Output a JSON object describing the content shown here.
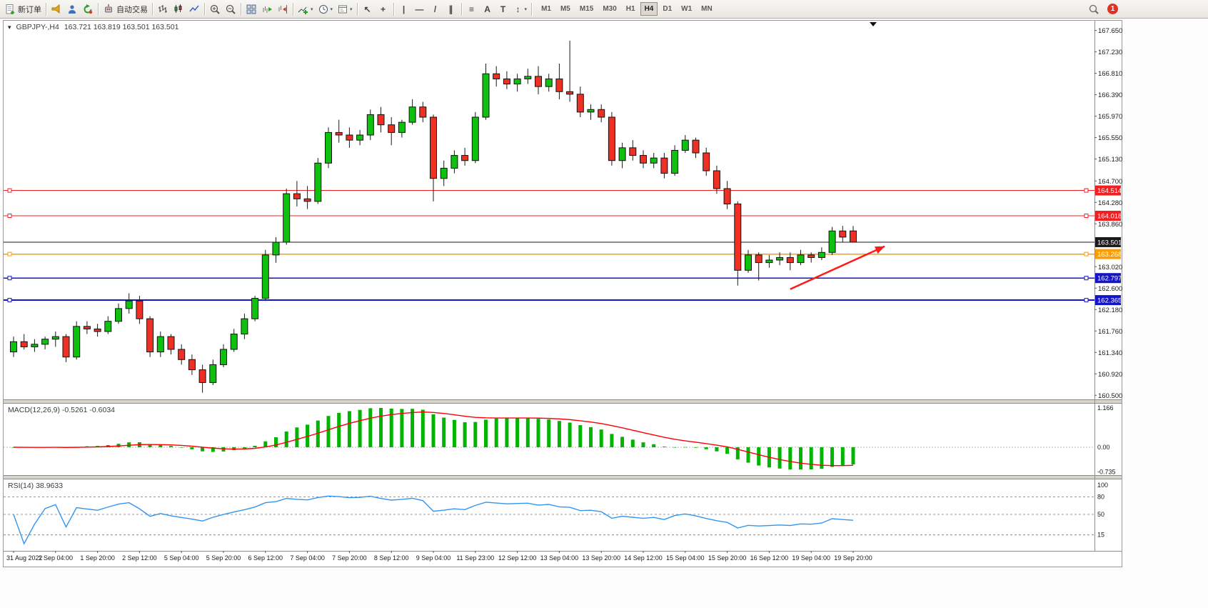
{
  "toolbar": {
    "new_order_label": "新订单",
    "auto_trading_label": "自动交易",
    "timeframes": [
      "M1",
      "M5",
      "M15",
      "M30",
      "H1",
      "H4",
      "D1",
      "W1",
      "MN"
    ],
    "active_timeframe": "H4",
    "notification_count": "1",
    "icon_glyphs": {
      "cursor": "↖",
      "crosshair": "+",
      "vline": "|",
      "hline": "—",
      "trendline": "/",
      "channel": "∥",
      "fibonacci": "≡",
      "text_tool": "A",
      "label_tool": "T",
      "arrows_tool": "↕",
      "caret": "▾"
    }
  },
  "chart_header": {
    "collapse_glyph": "▾",
    "symbol_timeframe": "GBPJPY-,H4",
    "ohlc_text": "163.721 163.819 163.501 163.501"
  },
  "indicators": {
    "macd_label": "MACD(12,26,9) -0.5261 -0.6034",
    "rsi_label": "RSI(14) 38.9633"
  },
  "chart_data": {
    "type": "candlestick",
    "title": "GBPJPY-,H4",
    "symbol": "GBPJPY-",
    "timeframe": "H4",
    "current_ohlc": {
      "open": 163.721,
      "high": 163.819,
      "low": 163.501,
      "close": 163.501
    },
    "price_axis": {
      "min": 160.42,
      "max": 167.84,
      "ticks": [
        167.65,
        167.23,
        166.81,
        166.39,
        165.97,
        165.55,
        165.13,
        164.7,
        164.28,
        163.86,
        163.02,
        162.6,
        162.18,
        161.76,
        161.34,
        160.92,
        160.5
      ]
    },
    "horizontal_lines": [
      {
        "price": 164.514,
        "label": "164.514",
        "color": "#f02020",
        "width": 1,
        "handles": true
      },
      {
        "price": 164.018,
        "label": "164.018",
        "color": "#f02020",
        "width": 1,
        "handles": true
      },
      {
        "price": 163.501,
        "label": "163.501",
        "color": "#1a1a1a",
        "width": 1,
        "handles": false
      },
      {
        "price": 163.268,
        "label": "163.268",
        "color": "#ff9c00",
        "width": 1.5,
        "handles": true
      },
      {
        "price": 162.797,
        "label": "162.797",
        "color": "#1414c8",
        "width": 1.5,
        "handles": true
      },
      {
        "price": 162.365,
        "label": "162.365",
        "color": "#1414c8",
        "width": 2,
        "handles": true
      }
    ],
    "trend_arrow": {
      "from_index": 74,
      "from_price": 162.58,
      "to_index": 83,
      "to_price": 163.42,
      "color": "#ff1a1a"
    },
    "label_every": 4,
    "time_labels": [
      "31 Aug 2022",
      "1 Sep 04:00",
      "1 Sep 20:00",
      "2 Sep 12:00",
      "5 Sep 04:00",
      "5 Sep 20:00",
      "6 Sep 12:00",
      "7 Sep 04:00",
      "7 Sep 20:00",
      "8 Sep 12:00",
      "9 Sep 04:00",
      "11 Sep 23:00",
      "12 Sep 12:00",
      "13 Sep 04:00",
      "13 Sep 20:00",
      "14 Sep 12:00",
      "15 Sep 04:00",
      "15 Sep 20:00",
      "16 Sep 12:00",
      "19 Sep 04:00",
      "19 Sep 20:00"
    ],
    "candles": [
      [
        161.35,
        161.65,
        161.25,
        161.55
      ],
      [
        161.55,
        161.7,
        161.4,
        161.45
      ],
      [
        161.45,
        161.6,
        161.35,
        161.5
      ],
      [
        161.5,
        161.65,
        161.4,
        161.6
      ],
      [
        161.6,
        161.75,
        161.45,
        161.65
      ],
      [
        161.65,
        161.7,
        161.15,
        161.25
      ],
      [
        161.25,
        161.95,
        161.2,
        161.85
      ],
      [
        161.85,
        161.95,
        161.7,
        161.8
      ],
      [
        161.8,
        161.9,
        161.65,
        161.75
      ],
      [
        161.75,
        162.05,
        161.7,
        161.95
      ],
      [
        161.95,
        162.3,
        161.9,
        162.2
      ],
      [
        162.2,
        162.5,
        162.1,
        162.35
      ],
      [
        162.35,
        162.45,
        161.9,
        162.0
      ],
      [
        162.0,
        162.05,
        161.25,
        161.35
      ],
      [
        161.35,
        161.75,
        161.25,
        161.65
      ],
      [
        161.65,
        161.7,
        161.3,
        161.4
      ],
      [
        161.4,
        161.5,
        161.1,
        161.2
      ],
      [
        161.2,
        161.3,
        160.9,
        161.0
      ],
      [
        161.0,
        161.1,
        160.55,
        160.75
      ],
      [
        160.75,
        161.2,
        160.7,
        161.1
      ],
      [
        161.1,
        161.5,
        161.05,
        161.4
      ],
      [
        161.4,
        161.8,
        161.35,
        161.7
      ],
      [
        161.7,
        162.1,
        161.6,
        162.0
      ],
      [
        162.0,
        162.45,
        161.95,
        162.4
      ],
      [
        162.4,
        163.35,
        162.35,
        163.25
      ],
      [
        163.25,
        163.6,
        163.1,
        163.5
      ],
      [
        163.5,
        164.55,
        163.45,
        164.45
      ],
      [
        164.45,
        164.7,
        164.2,
        164.35
      ],
      [
        164.35,
        164.6,
        164.15,
        164.3
      ],
      [
        164.3,
        165.15,
        164.25,
        165.05
      ],
      [
        165.05,
        165.75,
        164.95,
        165.65
      ],
      [
        165.65,
        165.9,
        165.45,
        165.6
      ],
      [
        165.6,
        165.75,
        165.35,
        165.5
      ],
      [
        165.5,
        165.7,
        165.4,
        165.6
      ],
      [
        165.6,
        166.1,
        165.5,
        166.0
      ],
      [
        166.0,
        166.15,
        165.65,
        165.8
      ],
      [
        165.8,
        165.95,
        165.4,
        165.65
      ],
      [
        165.65,
        165.9,
        165.55,
        165.85
      ],
      [
        165.85,
        166.3,
        165.8,
        166.15
      ],
      [
        166.15,
        166.25,
        165.85,
        165.95
      ],
      [
        165.95,
        166.0,
        164.3,
        164.75
      ],
      [
        164.75,
        165.1,
        164.6,
        164.95
      ],
      [
        164.95,
        165.3,
        164.85,
        165.2
      ],
      [
        165.2,
        165.35,
        165.0,
        165.1
      ],
      [
        165.1,
        166.05,
        165.05,
        165.95
      ],
      [
        165.95,
        167.0,
        165.9,
        166.8
      ],
      [
        166.8,
        166.95,
        166.55,
        166.7
      ],
      [
        166.7,
        166.85,
        166.5,
        166.6
      ],
      [
        166.6,
        166.8,
        166.45,
        166.7
      ],
      [
        166.7,
        166.9,
        166.6,
        166.75
      ],
      [
        166.75,
        166.95,
        166.4,
        166.55
      ],
      [
        166.55,
        166.8,
        166.45,
        166.7
      ],
      [
        166.7,
        167.0,
        166.3,
        166.45
      ],
      [
        166.45,
        167.45,
        166.25,
        166.4
      ],
      [
        166.4,
        166.55,
        165.95,
        166.05
      ],
      [
        166.05,
        166.2,
        165.9,
        166.1
      ],
      [
        166.1,
        166.2,
        165.85,
        165.95
      ],
      [
        165.95,
        166.05,
        165.0,
        165.1
      ],
      [
        165.1,
        165.45,
        164.95,
        165.35
      ],
      [
        165.35,
        165.5,
        165.1,
        165.2
      ],
      [
        165.2,
        165.3,
        164.95,
        165.05
      ],
      [
        165.05,
        165.25,
        164.95,
        165.15
      ],
      [
        165.15,
        165.25,
        164.75,
        164.85
      ],
      [
        164.85,
        165.4,
        164.8,
        165.3
      ],
      [
        165.3,
        165.6,
        165.25,
        165.5
      ],
      [
        165.5,
        165.55,
        165.15,
        165.25
      ],
      [
        165.25,
        165.35,
        164.8,
        164.9
      ],
      [
        164.9,
        165.0,
        164.45,
        164.55
      ],
      [
        164.55,
        164.7,
        164.15,
        164.25
      ],
      [
        164.25,
        164.3,
        162.65,
        162.95
      ],
      [
        162.95,
        163.35,
        162.9,
        163.25
      ],
      [
        163.25,
        163.3,
        162.75,
        163.1
      ],
      [
        163.1,
        163.25,
        163.0,
        163.15
      ],
      [
        163.15,
        163.3,
        163.05,
        163.2
      ],
      [
        163.2,
        163.3,
        162.95,
        163.1
      ],
      [
        163.1,
        163.35,
        163.05,
        163.25
      ],
      [
        163.25,
        163.3,
        163.1,
        163.2
      ],
      [
        163.2,
        163.4,
        163.15,
        163.3
      ],
      [
        163.3,
        163.8,
        163.25,
        163.72
      ],
      [
        163.72,
        163.82,
        163.5,
        163.6
      ],
      [
        163.721,
        163.819,
        163.501,
        163.501
      ]
    ],
    "macd": {
      "params": [
        12,
        26,
        9
      ],
      "value": -0.5261,
      "signal_value": -0.6034,
      "scale": [
        1.166,
        0.0,
        -0.735
      ],
      "histogram_color": "#00b400",
      "signal_color": "#ff0000"
    },
    "rsi": {
      "period": 14,
      "value": 38.9633,
      "scale": [
        100,
        80,
        50,
        15
      ],
      "levels": [
        80,
        50,
        15
      ],
      "line_color": "#3296f0"
    },
    "colors": {
      "up": "#0fc10f",
      "down": "#ee3024",
      "wick": "#1a1a1a",
      "border": "#111111"
    }
  }
}
